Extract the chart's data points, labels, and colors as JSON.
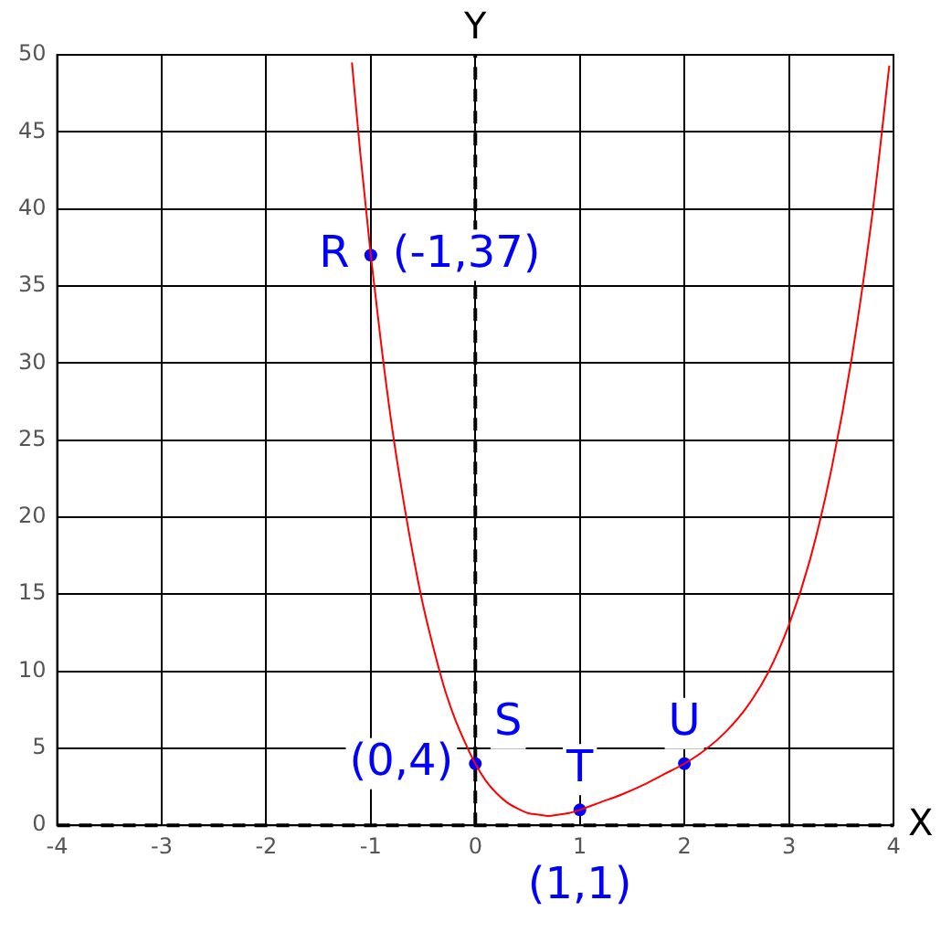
{
  "chart_data": {
    "type": "line",
    "xlim": [
      -4,
      4
    ],
    "ylim": [
      0,
      50
    ],
    "xticks": [
      -4,
      -3,
      -2,
      -1,
      0,
      1,
      2,
      3,
      4
    ],
    "yticks": [
      0,
      5,
      10,
      15,
      20,
      25,
      30,
      35,
      40,
      45,
      50
    ],
    "grid": true,
    "legend": false,
    "series": [
      {
        "type": "line",
        "color": "#ff0000",
        "marker": "none",
        "x": [
          -1.18,
          -1.1,
          -1,
          -0.9,
          -0.8,
          -0.7,
          -0.6,
          -0.5,
          -0.4,
          -0.3,
          -0.2,
          -0.1,
          0,
          0.1,
          0.2,
          0.3,
          0.4,
          0.5,
          0.6,
          0.7,
          0.8,
          0.9,
          1,
          1.2,
          1.4,
          1.6,
          1.8,
          2,
          2.2,
          2.4,
          2.6,
          2.8,
          3,
          3.2,
          3.4,
          3.6,
          3.8,
          3.96
        ],
        "values": [
          49.5,
          43.6,
          37,
          31.2,
          26,
          21.6,
          17.7,
          14.3,
          11.5,
          9,
          7,
          5.4,
          4,
          2.9,
          2.1,
          1.5,
          1.1,
          0.8,
          0.7,
          0.6,
          0.7,
          0.8,
          1,
          1.5,
          2,
          2.6,
          3.3,
          4,
          4.9,
          6.1,
          7.7,
          9.9,
          13,
          17.2,
          22.9,
          30.3,
          39.8,
          49.3
        ]
      },
      {
        "type": "scatter",
        "color": "#0000ff",
        "marker": "circle",
        "x": [
          -1,
          0,
          1,
          2
        ],
        "values": [
          37,
          4,
          1,
          4
        ]
      }
    ],
    "ref_lines": [
      {
        "axis": "x",
        "value": 0,
        "label": "Y",
        "color": "#000000",
        "line_style": "dashed"
      },
      {
        "axis": "y",
        "value": 0,
        "label": "X",
        "color": "#000000",
        "line_style": "dashed"
      }
    ],
    "annotations": [
      {
        "text": "R",
        "x": -1,
        "y": 37
      },
      {
        "text": "(-1,37)",
        "x": -1,
        "y": 37
      },
      {
        "text": "S",
        "x": 0,
        "y": 4
      },
      {
        "text": "(0,4)",
        "x": 0,
        "y": 4
      },
      {
        "text": "T",
        "x": 1,
        "y": 1
      },
      {
        "text": "(1,1)",
        "x": 1,
        "y": 1
      },
      {
        "text": "U",
        "x": 2,
        "y": 4
      }
    ]
  }
}
